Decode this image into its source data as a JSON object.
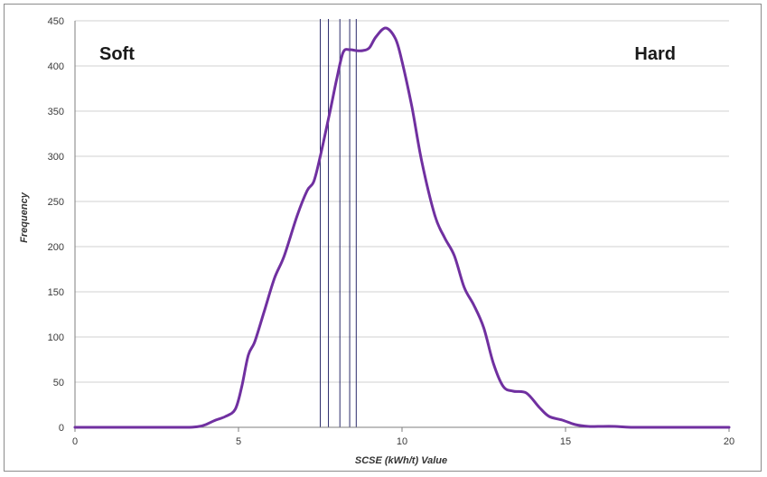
{
  "chart_data": {
    "type": "line",
    "xlabel": "SCSE (kWh/t) Value",
    "ylabel": "Frequency",
    "xlim": [
      0,
      20
    ],
    "ylim": [
      0,
      450
    ],
    "x_ticks": [
      0,
      5,
      10,
      15,
      20
    ],
    "y_ticks": [
      0,
      50,
      100,
      150,
      200,
      250,
      300,
      350,
      400,
      450
    ],
    "grid": "horizontal",
    "annotations": [
      "Soft",
      "Hard"
    ],
    "line_color": "#7030a0",
    "vline_color": "#2b2b6b",
    "vlines": [
      7.5,
      7.75,
      8.1,
      8.4,
      8.6
    ],
    "series": [
      {
        "x": [
          0,
          1,
          2,
          3,
          3.5,
          3.8,
          4.0,
          4.3,
          4.6,
          4.9,
          5.1,
          5.3,
          5.5,
          5.8,
          6.1,
          6.4,
          6.8,
          7.1,
          7.3,
          7.5,
          7.8,
          8.0,
          8.2,
          8.4,
          8.6,
          8.8,
          9.0,
          9.2,
          9.5,
          9.8,
          10.0,
          10.3,
          10.6,
          11.0,
          11.3,
          11.6,
          11.9,
          12.2,
          12.5,
          12.8,
          13.1,
          13.4,
          13.8,
          14.2,
          14.5,
          14.9,
          15.3,
          15.7,
          16.0,
          16.5,
          17.0,
          18.0,
          19.0,
          20.0
        ],
        "values": [
          0,
          0,
          0,
          0,
          0,
          1,
          3,
          8,
          12,
          20,
          45,
          80,
          95,
          130,
          165,
          190,
          235,
          262,
          272,
          300,
          350,
          385,
          415,
          418,
          417,
          417,
          420,
          432,
          442,
          430,
          405,
          355,
          295,
          235,
          210,
          190,
          155,
          135,
          110,
          70,
          45,
          40,
          38,
          22,
          12,
          8,
          3,
          1,
          1,
          1,
          0,
          0,
          0,
          0
        ]
      }
    ]
  }
}
